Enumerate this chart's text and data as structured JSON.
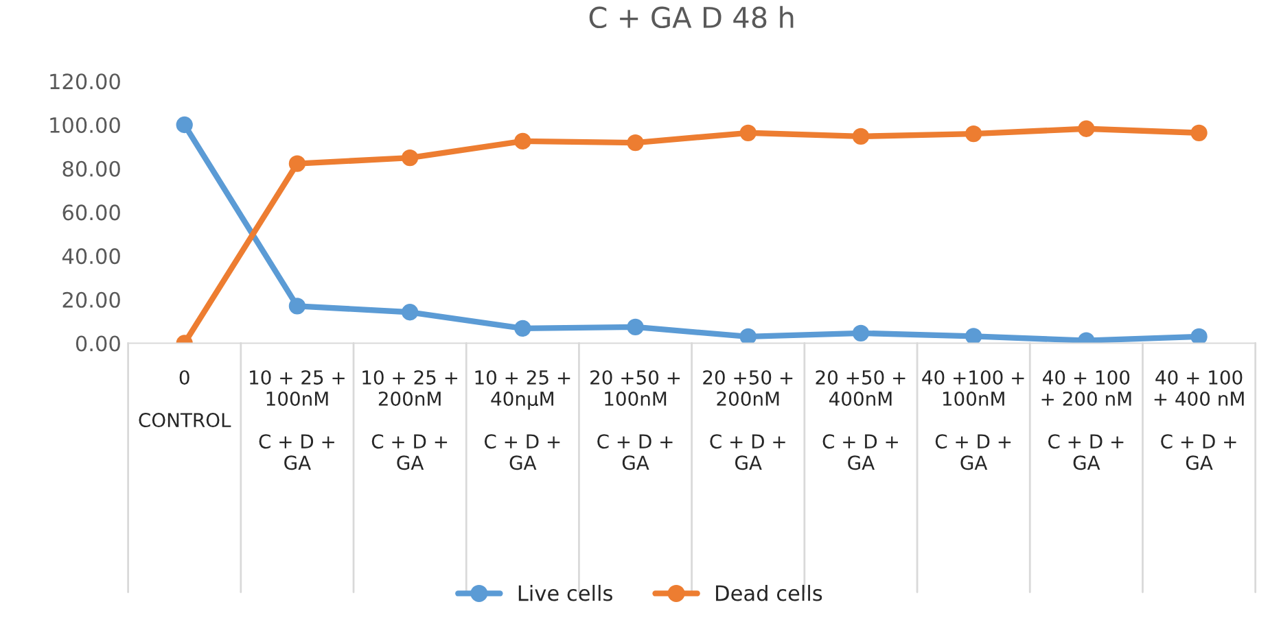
{
  "chart_data": {
    "type": "line",
    "title": "C + GA D 48 h",
    "categories": [
      "0\n\nCONTROL",
      "10 + 25 +\n100nM\n\nC + D +\nGA",
      "10 + 25 +\n200nM\n\nC + D +\nGA",
      "10 + 25 +\n40nµM\n\nC + D +\nGA",
      "20 +50 +\n100nM\n\nC + D +\nGA",
      "20 +50 +\n200nM\n\nC + D +\nGA",
      "20 +50 +\n400nM\n\nC + D +\nGA",
      "40 +100 +\n100nM\n\nC + D +\nGA",
      "40 + 100\n+ 200 nM\n\nC + D +\nGA",
      "40 + 100\n+ 400 nM\n\nC + D +\nGA"
    ],
    "series": [
      {
        "name": "Live cells",
        "color": "#5b9bd5",
        "values": [
          100,
          17,
          14.2,
          6.8,
          7.4,
          3,
          4.6,
          3.2,
          1.2,
          3
        ]
      },
      {
        "name": "Dead cells",
        "color": "#ed7d31",
        "values": [
          0,
          82.2,
          84.9,
          92.5,
          91.8,
          96.3,
          94.7,
          95.9,
          98.2,
          96.3
        ]
      }
    ],
    "ylim": [
      0,
      120
    ],
    "yticks": [
      {
        "value": 0,
        "label": "0.00"
      },
      {
        "value": 20,
        "label": "20.00"
      },
      {
        "value": 40,
        "label": "40.00"
      },
      {
        "value": 60,
        "label": "60.00"
      },
      {
        "value": 80,
        "label": "80.00"
      },
      {
        "value": 100,
        "label": "100.00"
      },
      {
        "value": 120,
        "label": "120.00"
      }
    ],
    "grid": false,
    "legend": "bottom",
    "marker": "circle",
    "line_style": "solid"
  }
}
